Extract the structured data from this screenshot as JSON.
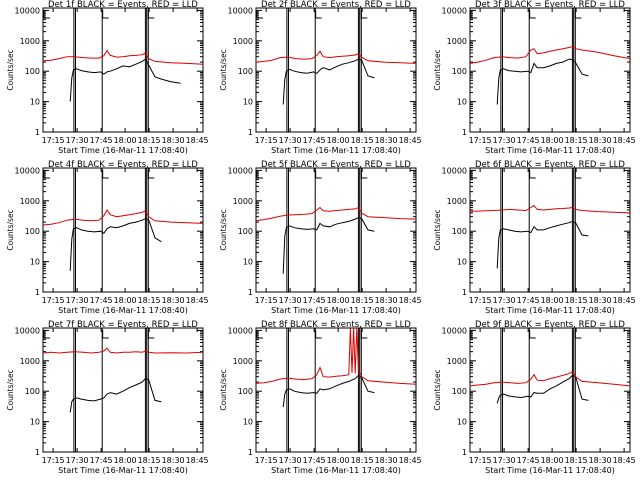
{
  "colors": {
    "events": "#000000",
    "lld": "#dd0000",
    "axes": "#000000",
    "background": "#ffffff"
  },
  "shared": {
    "xlabel": "Start Time (16-Mar-11 17:08:40)",
    "ylabel": "Counts/sec",
    "x_ticks": [
      "17:15",
      "17:30",
      "17:45",
      "18:00",
      "18:15",
      "18:30",
      "18:45"
    ],
    "x_tick_minutes": [
      6.33,
      21.33,
      36.33,
      51.33,
      66.33,
      81.33,
      96.33
    ],
    "xlim_minutes": [
      0,
      100
    ],
    "y_ticks": [
      "1",
      "10",
      "100",
      "1000",
      "10000"
    ],
    "y_tick_values": [
      1,
      10,
      100,
      1000,
      10000
    ],
    "ylim": [
      1,
      12000
    ],
    "yscale": "log",
    "vertical_markers_minutes": [
      19.3,
      20.3,
      37.0,
      64.0,
      64.8,
      65.8
    ],
    "marker_flags": [
      {
        "label": "",
        "minute": 0.6
      },
      {
        "label": "",
        "minute": 37.3
      },
      {
        "label": "",
        "minute": 65.8
      }
    ]
  },
  "chart_data": [
    {
      "type": "line",
      "title": "Det 1f BLACK = Events, RED = LLD",
      "series": [
        {
          "name": "Events",
          "x": [
            17,
            18,
            19,
            21,
            24,
            28,
            32,
            36,
            38,
            40,
            42,
            46,
            50,
            54,
            58,
            62,
            64,
            66,
            70,
            74,
            80,
            86
          ],
          "y": [
            10,
            60,
            110,
            120,
            105,
            95,
            90,
            95,
            80,
            95,
            100,
            120,
            150,
            140,
            170,
            210,
            250,
            160,
            65,
            55,
            45,
            40
          ]
        },
        {
          "name": "LLD",
          "x": [
            0,
            5,
            10,
            15,
            20,
            25,
            30,
            35,
            38,
            40,
            42,
            46,
            50,
            54,
            58,
            62,
            64,
            66,
            70,
            80,
            90,
            100
          ],
          "y": [
            220,
            230,
            260,
            300,
            300,
            280,
            270,
            270,
            320,
            480,
            330,
            290,
            300,
            320,
            330,
            350,
            400,
            260,
            210,
            190,
            180,
            170
          ]
        }
      ]
    },
    {
      "type": "line",
      "title": "Det 2f BLACK = Events, RED = LLD",
      "series": [
        {
          "name": "Events",
          "x": [
            17,
            18,
            19,
            21,
            24,
            28,
            32,
            36,
            38,
            40,
            42,
            46,
            50,
            54,
            58,
            62,
            64,
            66,
            70,
            74
          ],
          "y": [
            8,
            55,
            100,
            115,
            100,
            90,
            85,
            95,
            85,
            110,
            130,
            110,
            140,
            170,
            190,
            220,
            250,
            230,
            70,
            60
          ]
        },
        {
          "name": "LLD",
          "x": [
            0,
            5,
            10,
            15,
            20,
            25,
            30,
            35,
            38,
            40,
            42,
            46,
            50,
            54,
            58,
            62,
            64,
            66,
            70,
            80,
            90,
            100
          ],
          "y": [
            200,
            210,
            230,
            280,
            290,
            260,
            250,
            260,
            330,
            450,
            300,
            280,
            300,
            310,
            320,
            340,
            380,
            290,
            220,
            200,
            190,
            180
          ]
        }
      ]
    },
    {
      "type": "line",
      "title": "Det 3f BLACK = Events, RED = LLD",
      "series": [
        {
          "name": "Events",
          "x": [
            17,
            18,
            19,
            21,
            24,
            28,
            32,
            36,
            38,
            40,
            42,
            46,
            50,
            54,
            58,
            62,
            64,
            66,
            70,
            74
          ],
          "y": [
            8,
            60,
            110,
            120,
            105,
            100,
            95,
            100,
            90,
            180,
            130,
            130,
            150,
            180,
            200,
            250,
            240,
            190,
            80,
            70
          ]
        },
        {
          "name": "LLD",
          "x": [
            0,
            5,
            10,
            15,
            20,
            25,
            30,
            35,
            38,
            40,
            42,
            46,
            50,
            54,
            58,
            62,
            64,
            66,
            70,
            80,
            90,
            100
          ],
          "y": [
            180,
            200,
            230,
            280,
            300,
            280,
            270,
            300,
            500,
            550,
            380,
            400,
            450,
            500,
            550,
            600,
            650,
            550,
            500,
            420,
            320,
            260
          ]
        }
      ]
    },
    {
      "type": "line",
      "title": "Det 4f BLACK = Events, RED = LLD",
      "series": [
        {
          "name": "Events",
          "x": [
            17,
            18,
            19,
            21,
            24,
            28,
            32,
            36,
            38,
            40,
            42,
            46,
            50,
            54,
            58,
            62,
            64,
            66,
            70,
            74
          ],
          "y": [
            5,
            55,
            120,
            130,
            110,
            100,
            95,
            100,
            85,
            120,
            140,
            130,
            150,
            180,
            200,
            230,
            260,
            240,
            60,
            45
          ]
        },
        {
          "name": "LLD",
          "x": [
            0,
            5,
            10,
            15,
            20,
            25,
            30,
            35,
            38,
            40,
            42,
            46,
            50,
            54,
            58,
            62,
            64,
            66,
            70,
            80,
            90,
            100
          ],
          "y": [
            160,
            170,
            190,
            230,
            250,
            230,
            220,
            230,
            320,
            500,
            350,
            300,
            320,
            350,
            380,
            420,
            470,
            300,
            220,
            200,
            190,
            180
          ]
        }
      ]
    },
    {
      "type": "line",
      "title": "Det 5f BLACK = Events, RED = LLD",
      "series": [
        {
          "name": "Events",
          "x": [
            17,
            18,
            19,
            21,
            24,
            28,
            32,
            36,
            38,
            40,
            42,
            46,
            50,
            54,
            58,
            62,
            64,
            66,
            70,
            74
          ],
          "y": [
            4,
            70,
            130,
            150,
            130,
            120,
            115,
            120,
            110,
            180,
            150,
            140,
            170,
            190,
            210,
            250,
            280,
            260,
            110,
            100
          ]
        },
        {
          "name": "LLD",
          "x": [
            0,
            5,
            10,
            15,
            20,
            25,
            30,
            35,
            38,
            40,
            42,
            46,
            50,
            54,
            58,
            62,
            64,
            66,
            70,
            80,
            90,
            100
          ],
          "y": [
            220,
            240,
            270,
            310,
            340,
            350,
            360,
            380,
            500,
            600,
            470,
            450,
            480,
            500,
            520,
            540,
            600,
            400,
            300,
            280,
            260,
            250
          ]
        }
      ]
    },
    {
      "type": "line",
      "title": "Det 6f BLACK = Events, RED = LLD",
      "series": [
        {
          "name": "Events",
          "x": [
            17,
            18,
            19,
            21,
            24,
            28,
            32,
            36,
            38,
            40,
            42,
            46,
            50,
            54,
            58,
            62,
            64,
            66,
            70,
            74
          ],
          "y": [
            6,
            60,
            110,
            120,
            110,
            100,
            95,
            100,
            90,
            140,
            110,
            110,
            130,
            150,
            170,
            190,
            210,
            190,
            75,
            70
          ]
        },
        {
          "name": "LLD",
          "x": [
            0,
            5,
            10,
            15,
            20,
            25,
            30,
            35,
            38,
            40,
            42,
            46,
            50,
            54,
            58,
            62,
            64,
            66,
            70,
            80,
            90,
            100
          ],
          "y": [
            450,
            460,
            470,
            480,
            500,
            520,
            500,
            480,
            600,
            700,
            520,
            500,
            520,
            550,
            560,
            580,
            600,
            520,
            480,
            440,
            420,
            400
          ]
        }
      ]
    },
    {
      "type": "line",
      "title": "Det 7f BLACK = Events, RED = LLD",
      "series": [
        {
          "name": "Events",
          "x": [
            17,
            18,
            19,
            21,
            24,
            28,
            32,
            36,
            38,
            40,
            42,
            46,
            50,
            54,
            58,
            62,
            64,
            66,
            70,
            74
          ],
          "y": [
            20,
            45,
            55,
            60,
            55,
            50,
            48,
            55,
            60,
            80,
            90,
            80,
            100,
            130,
            160,
            200,
            260,
            240,
            50,
            45
          ]
        },
        {
          "name": "LLD",
          "x": [
            0,
            5,
            10,
            15,
            20,
            25,
            30,
            35,
            38,
            40,
            42,
            46,
            50,
            54,
            58,
            62,
            64,
            66,
            70,
            80,
            90,
            100
          ],
          "y": [
            1800,
            1900,
            1800,
            1900,
            2000,
            1900,
            1800,
            1900,
            2100,
            2600,
            1900,
            1800,
            1900,
            1900,
            2000,
            1900,
            2100,
            1900,
            1800,
            1850,
            1800,
            1900
          ]
        }
      ]
    },
    {
      "type": "line",
      "title": "Det 8f BLACK = Events, RED = LLD",
      "series": [
        {
          "name": "Events",
          "x": [
            17,
            18,
            19,
            21,
            24,
            28,
            32,
            36,
            38,
            40,
            42,
            46,
            50,
            54,
            58,
            62,
            64,
            66,
            70,
            74
          ],
          "y": [
            30,
            80,
            110,
            120,
            100,
            90,
            85,
            90,
            85,
            120,
            110,
            120,
            150,
            180,
            210,
            260,
            330,
            280,
            100,
            90
          ]
        },
        {
          "name": "LLD",
          "x": [
            0,
            5,
            10,
            15,
            20,
            25,
            30,
            35,
            38,
            40,
            42,
            46,
            50,
            54,
            58,
            59,
            60,
            61,
            62,
            63,
            64,
            66,
            70,
            80,
            90,
            100
          ],
          "y": [
            180,
            190,
            210,
            250,
            270,
            250,
            240,
            260,
            350,
            600,
            300,
            290,
            310,
            320,
            350,
            12000,
            400,
            12000,
            380,
            12000,
            500,
            300,
            220,
            200,
            180,
            170
          ]
        }
      ]
    },
    {
      "type": "line",
      "title": "Det 9f BLACK = Events, RED = LLD",
      "series": [
        {
          "name": "Events",
          "x": [
            17,
            18,
            19,
            21,
            24,
            28,
            32,
            36,
            38,
            40,
            42,
            46,
            50,
            54,
            58,
            62,
            64,
            66,
            70,
            74
          ],
          "y": [
            40,
            60,
            75,
            80,
            70,
            65,
            62,
            68,
            65,
            90,
            85,
            85,
            120,
            150,
            200,
            260,
            330,
            300,
            55,
            50
          ]
        },
        {
          "name": "LLD",
          "x": [
            0,
            5,
            10,
            15,
            20,
            25,
            30,
            35,
            38,
            40,
            42,
            46,
            50,
            54,
            58,
            62,
            64,
            66,
            70,
            80,
            90,
            100
          ],
          "y": [
            150,
            160,
            170,
            190,
            200,
            190,
            180,
            190,
            250,
            350,
            230,
            220,
            260,
            290,
            330,
            380,
            450,
            300,
            210,
            190,
            170,
            150
          ]
        }
      ]
    }
  ]
}
